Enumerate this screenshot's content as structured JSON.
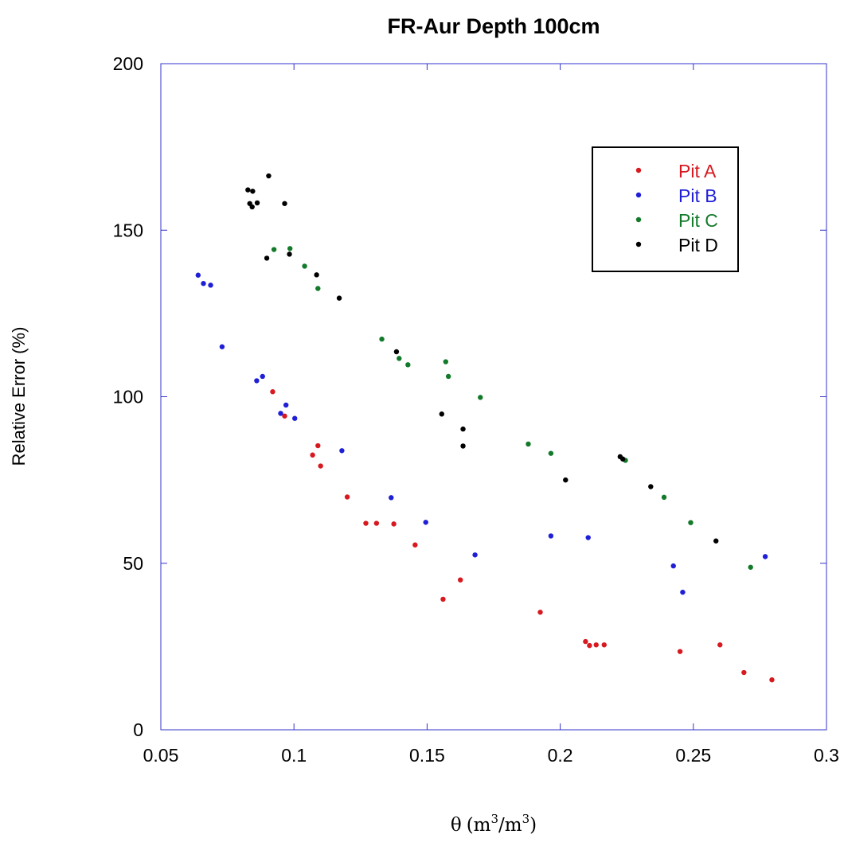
{
  "chart_data": {
    "type": "scatter",
    "title": "FR-Aur Depth 100cm",
    "xlabel_parts": {
      "symbol": "θ",
      "open": "(m",
      "sup1": "3",
      "mid": "/m",
      "sup2": "3",
      "close": ")"
    },
    "ylabel": "Relative Error (%)",
    "xlim": [
      0.05,
      0.3
    ],
    "ylim": [
      0,
      200
    ],
    "xticks": [
      "0.05",
      "0.1",
      "0.15",
      "0.2",
      "0.25",
      "0.3"
    ],
    "yticks": [
      "0",
      "50",
      "100",
      "150",
      "200"
    ],
    "grid": false,
    "legend_position": "top-right",
    "colors": {
      "axes_frame": "#3333cc",
      "Pit A": "#d71920",
      "Pit B": "#1f1fd6",
      "Pit C": "#137a2a",
      "Pit D": "#000000"
    },
    "series": [
      {
        "name": "Pit A",
        "points": [
          [
            0.092,
            101.5
          ],
          [
            0.0965,
            94.2
          ],
          [
            0.107,
            82.5
          ],
          [
            0.109,
            85.3
          ],
          [
            0.11,
            79.2
          ],
          [
            0.12,
            69.9
          ],
          [
            0.127,
            62.0
          ],
          [
            0.131,
            62.0
          ],
          [
            0.1375,
            61.8
          ],
          [
            0.1455,
            55.5
          ],
          [
            0.156,
            39.2
          ],
          [
            0.1625,
            45.0
          ],
          [
            0.1925,
            35.3
          ],
          [
            0.2095,
            26.5
          ],
          [
            0.211,
            25.3
          ],
          [
            0.2135,
            25.5
          ],
          [
            0.2165,
            25.5
          ],
          [
            0.245,
            23.5
          ],
          [
            0.26,
            25.5
          ],
          [
            0.269,
            17.2
          ],
          [
            0.2795,
            15.0
          ]
        ]
      },
      {
        "name": "Pit B",
        "points": [
          [
            0.064,
            136.5
          ],
          [
            0.066,
            134.0
          ],
          [
            0.0687,
            133.5
          ],
          [
            0.073,
            115.0
          ],
          [
            0.086,
            104.8
          ],
          [
            0.0882,
            106.1
          ],
          [
            0.095,
            95.0
          ],
          [
            0.097,
            97.5
          ],
          [
            0.1003,
            93.5
          ],
          [
            0.118,
            83.8
          ],
          [
            0.1365,
            69.7
          ],
          [
            0.1495,
            62.3
          ],
          [
            0.168,
            52.5
          ],
          [
            0.1965,
            58.2
          ],
          [
            0.2105,
            57.7
          ],
          [
            0.2425,
            49.2
          ],
          [
            0.246,
            41.3
          ],
          [
            0.277,
            52.0
          ]
        ]
      },
      {
        "name": "Pit C",
        "points": [
          [
            0.0925,
            144.2
          ],
          [
            0.0985,
            144.5
          ],
          [
            0.104,
            139.2
          ],
          [
            0.109,
            132.5
          ],
          [
            0.133,
            117.3
          ],
          [
            0.1395,
            111.5
          ],
          [
            0.1428,
            109.6
          ],
          [
            0.157,
            110.5
          ],
          [
            0.158,
            106.1
          ],
          [
            0.17,
            99.8
          ],
          [
            0.188,
            85.8
          ],
          [
            0.1965,
            83.0
          ],
          [
            0.2245,
            80.9
          ],
          [
            0.239,
            69.8
          ],
          [
            0.249,
            62.2
          ],
          [
            0.2715,
            48.8
          ]
        ]
      },
      {
        "name": "Pit D",
        "points": [
          [
            0.0827,
            162.1
          ],
          [
            0.0845,
            161.7
          ],
          [
            0.0834,
            158.0
          ],
          [
            0.0843,
            157.0
          ],
          [
            0.0862,
            158.2
          ],
          [
            0.0905,
            166.3
          ],
          [
            0.0965,
            158.0
          ],
          [
            0.0898,
            141.6
          ],
          [
            0.0983,
            142.8
          ],
          [
            0.1085,
            136.6
          ],
          [
            0.117,
            129.6
          ],
          [
            0.1385,
            113.5
          ],
          [
            0.1555,
            94.8
          ],
          [
            0.1635,
            90.3
          ],
          [
            0.1635,
            85.2
          ],
          [
            0.202,
            75.0
          ],
          [
            0.2225,
            82.0
          ],
          [
            0.2235,
            81.3
          ],
          [
            0.234,
            73.0
          ],
          [
            0.2585,
            56.7
          ]
        ]
      }
    ]
  }
}
